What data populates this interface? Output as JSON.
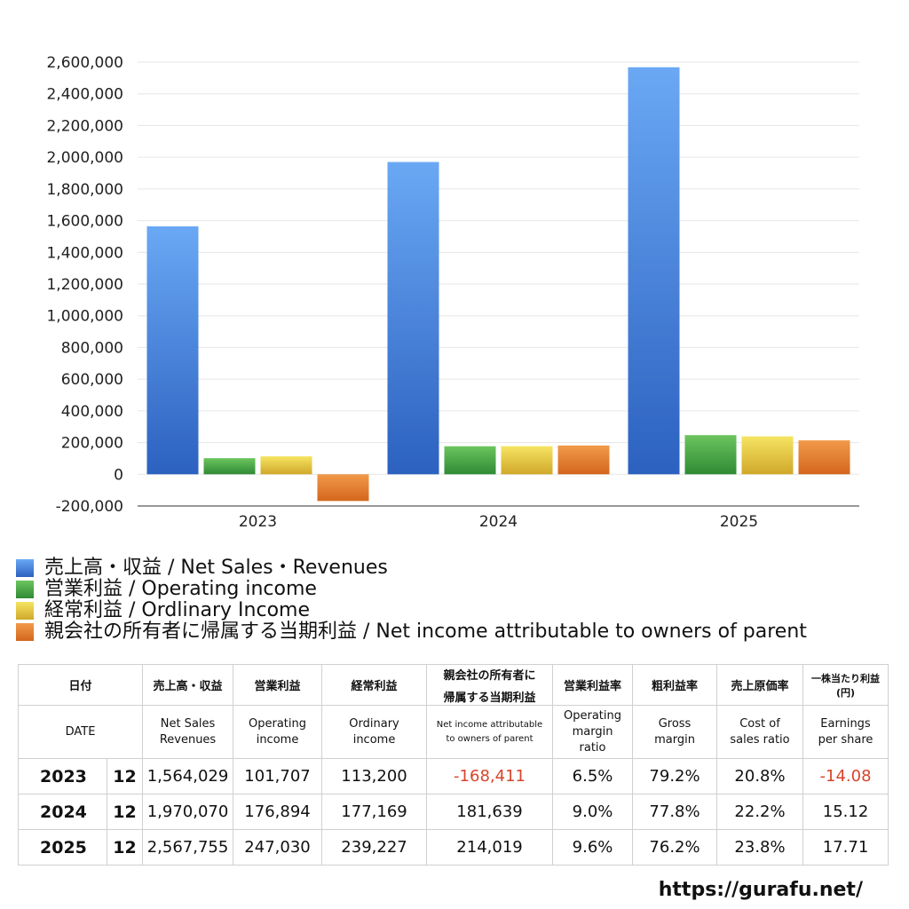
{
  "chart_data": {
    "type": "bar",
    "categories": [
      "2023",
      "2024",
      "2025"
    ],
    "series": [
      {
        "name": "売上高・収益 / Net Sales・Revenues",
        "color": "#3a7be0",
        "values": [
          1564029,
          1970070,
          2567755
        ]
      },
      {
        "name": "営業利益 / Operating income",
        "color": "#48a24a",
        "values": [
          101707,
          176894,
          247030
        ]
      },
      {
        "name": "経常利益 / Ordlinary Income",
        "color": "#e3c43a",
        "values": [
          113200,
          177169,
          239227
        ]
      },
      {
        "name": "親会社の所有者に帰属する当期利益 / Net income attributable to owners of parent",
        "color": "#e37a2c",
        "values": [
          -168411,
          181639,
          214019
        ]
      }
    ],
    "ylim": [
      -200000,
      2600000
    ],
    "ytick_step": 200000,
    "yticks": [
      "-200,000",
      "0",
      "200,000",
      "400,000",
      "600,000",
      "800,000",
      "1,000,000",
      "1,200,000",
      "1,400,000",
      "1,600,000",
      "1,800,000",
      "2,000,000",
      "2,200,000",
      "2,400,000",
      "2,600,000"
    ],
    "grid": true,
    "legend_position": "bottom"
  },
  "table": {
    "headers_jp": [
      "日付",
      "売上高・収益",
      "営業利益",
      "経常利益",
      "親会社の所有者に",
      "帰属する当期利益",
      "営業利益率",
      "粗利益率",
      "売上原価率",
      "一株当たり利益",
      "(円)"
    ],
    "headers_en": {
      "date": "DATE",
      "sales_1": "Net Sales",
      "sales_2": "Revenues",
      "op_1": "Operating",
      "op_2": "income",
      "ord_1": "Ordinary",
      "ord_2": "income",
      "net_1": "Net income attributable",
      "net_2": "to owners of parent",
      "opm_1": "Operating",
      "opm_2": "margin",
      "opm_3": "ratio",
      "gm_1": "Gross",
      "gm_2": "margin",
      "cos_1": "Cost of",
      "cos_2": "sales ratio",
      "eps_1": "Earnings",
      "eps_2": "per share"
    },
    "rows": [
      {
        "year": "2023",
        "month": "12",
        "sales": "1,564,029",
        "op": "101,707",
        "ord": "113,200",
        "net": "-168,411",
        "opm": "6.5%",
        "gm": "79.2%",
        "cos": "20.8%",
        "eps": "-14.08"
      },
      {
        "year": "2024",
        "month": "12",
        "sales": "1,970,070",
        "op": "176,894",
        "ord": "177,169",
        "net": "181,639",
        "opm": "9.0%",
        "gm": "77.8%",
        "cos": "22.2%",
        "eps": "15.12"
      },
      {
        "year": "2025",
        "month": "12",
        "sales": "2,567,755",
        "op": "247,030",
        "ord": "239,227",
        "net": "214,019",
        "opm": "9.6%",
        "gm": "76.2%",
        "cos": "23.8%",
        "eps": "17.71"
      }
    ]
  },
  "watermark": "https://gurafu.net/"
}
